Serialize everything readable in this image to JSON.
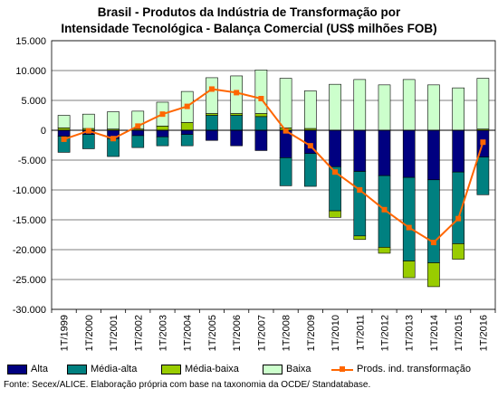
{
  "chart_data": {
    "type": "bar",
    "title_lines": [
      "Brasil - Produtos da Indústria de Transformação por",
      "Intensidade Tecnológica - Balança Comercial (US$ milhões FOB)"
    ],
    "categories": [
      "1T/1999",
      "1T/2000",
      "1T/2001",
      "1T/2002",
      "1T/2003",
      "1T/2004",
      "1T/2005",
      "1T/2006",
      "1T/2007",
      "1T/2008",
      "1T/2009",
      "1T/2010",
      "1T/2011",
      "1T/2012",
      "1T/2013",
      "1T/2014",
      "1T/2015",
      "1T/2016"
    ],
    "y_ticks": [
      "15.000",
      "10.000",
      "5.000",
      "0",
      "-5.000",
      "-10.000",
      "-15.000",
      "-20.000",
      "-25.000",
      "-30.000"
    ],
    "ylim": [
      -30000,
      15000
    ],
    "grid": true,
    "stacked": true,
    "series": [
      {
        "name": "Alta",
        "kind": "bar",
        "color": "#000080",
        "values": [
          -1000,
          -700,
          -1400,
          -900,
          -1100,
          -700,
          -1700,
          -2600,
          -3400,
          -4600,
          -3900,
          -6100,
          -6900,
          -7600,
          -7900,
          -8300,
          -7000,
          -4500
        ]
      },
      {
        "name": "Média-alta",
        "kind": "bar",
        "color": "#008080",
        "values": [
          -2700,
          -2400,
          -3000,
          -2000,
          -1500,
          -1900,
          2500,
          2500,
          2300,
          -4700,
          -5500,
          -7400,
          -10800,
          -12000,
          -14000,
          -13900,
          -12000,
          -6300
        ]
      },
      {
        "name": "Média-baixa",
        "kind": "bar",
        "color": "#99cc00",
        "values": [
          400,
          300,
          200,
          200,
          700,
          1300,
          300,
          300,
          500,
          400,
          300,
          -1100,
          -600,
          -1000,
          -2800,
          -4000,
          -2600,
          200
        ]
      },
      {
        "name": "Baixa",
        "kind": "bar",
        "color": "#ccffcc",
        "values": [
          2100,
          2400,
          2900,
          3000,
          4000,
          5200,
          6000,
          6300,
          7300,
          8300,
          6300,
          7700,
          8500,
          7600,
          8500,
          7600,
          7100,
          8500
        ]
      },
      {
        "name": "Prods. ind. transformação",
        "kind": "line",
        "color": "#ff6600",
        "values": [
          -1500,
          -100,
          -1400,
          700,
          2700,
          4000,
          6900,
          6300,
          5300,
          -100,
          -2600,
          -7000,
          -10000,
          -13300,
          -16300,
          -18800,
          -14800,
          -2000
        ]
      }
    ],
    "legend_position": "bottom"
  },
  "source": "Fonte: Secex/ALICE. Elaboração própria com base na taxonomia da OCDE/ Standatabase."
}
